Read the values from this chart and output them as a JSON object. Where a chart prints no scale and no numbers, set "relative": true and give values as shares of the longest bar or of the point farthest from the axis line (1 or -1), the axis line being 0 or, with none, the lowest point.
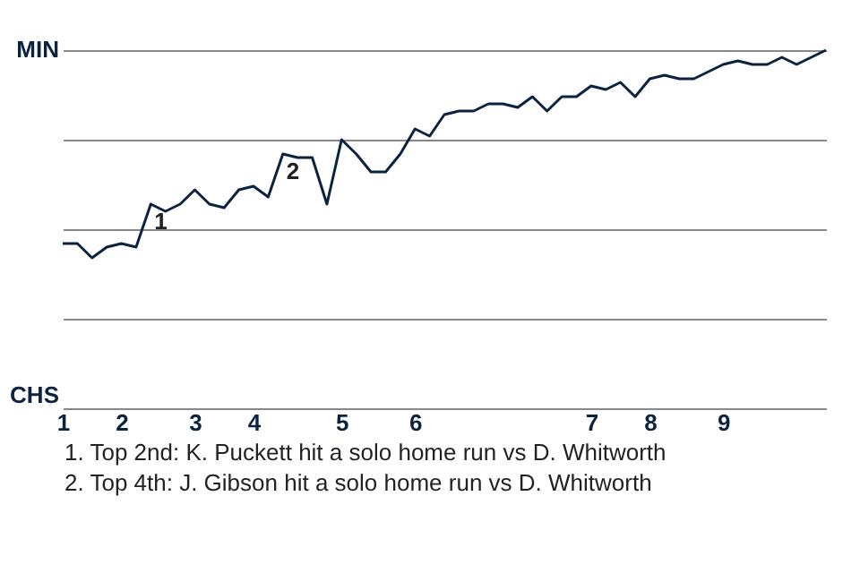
{
  "chart_data": {
    "type": "line",
    "relative": true,
    "categories": [
      "1",
      null,
      null,
      null,
      "2",
      null,
      null,
      null,
      null,
      "3",
      null,
      null,
      null,
      "4",
      null,
      null,
      null,
      null,
      null,
      "5",
      null,
      null,
      null,
      null,
      "6",
      null,
      null,
      null,
      null,
      null,
      null,
      null,
      null,
      null,
      null,
      null,
      "7",
      null,
      null,
      null,
      "8",
      null,
      null,
      null,
      null,
      "9",
      null,
      null,
      null,
      null,
      null,
      null,
      null
    ],
    "values": [
      0.46,
      0.46,
      0.42,
      0.45,
      0.46,
      0.45,
      0.57,
      0.55,
      0.57,
      0.61,
      0.57,
      0.56,
      0.61,
      0.62,
      0.59,
      0.71,
      0.7,
      0.7,
      0.57,
      0.75,
      0.71,
      0.66,
      0.66,
      0.71,
      0.78,
      0.76,
      0.82,
      0.83,
      0.83,
      0.85,
      0.85,
      0.84,
      0.87,
      0.83,
      0.87,
      0.87,
      0.9,
      0.89,
      0.91,
      0.87,
      0.92,
      0.93,
      0.92,
      0.92,
      0.94,
      0.96,
      0.97,
      0.96,
      0.96,
      0.98,
      0.96,
      0.98,
      1.0
    ],
    "color": "#0c2340",
    "grid": "y",
    "annotations": [
      {
        "text": "1",
        "y": 0.57
      },
      {
        "text": "2",
        "y": 0.71
      },
      "MIN",
      "CHS",
      "1. Top 2nd: K. Puckett hit a solo home run vs D. Whitworth",
      "2. Top 4th: J. Gibson hit a solo home run vs D. Whitworth"
    ]
  }
}
